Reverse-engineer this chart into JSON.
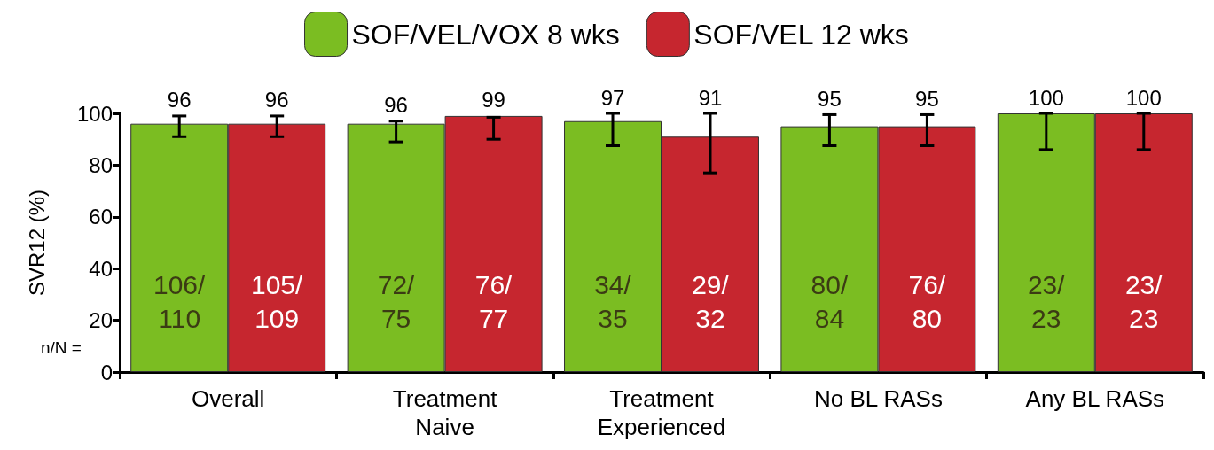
{
  "chart_data": {
    "type": "bar",
    "ylabel": "SVR12 (%)",
    "categories": [
      "Overall",
      "Treatment\nNaive",
      "Treatment\nExperienced",
      "No BL RASs",
      "Any BL RASs"
    ],
    "series": [
      {
        "name": "SOF/VEL/VOX 8 wks",
        "color": "#7bbd22",
        "values": [
          96,
          96,
          97,
          95,
          100
        ],
        "errors": [
          [
            91,
            99
          ],
          [
            89,
            97
          ],
          [
            87.5,
            100
          ],
          [
            87.5,
            99.5
          ],
          [
            86,
            100
          ]
        ]
      },
      {
        "name": "SOF/VEL 12 wks",
        "color": "#c6262f",
        "values": [
          96,
          99,
          91,
          95,
          100
        ],
        "errors": [
          [
            91,
            99
          ],
          [
            90,
            98.5
          ],
          [
            77,
            100
          ],
          [
            87.5,
            99.5
          ],
          [
            86,
            100
          ]
        ]
      }
    ],
    "ylim": [
      0,
      100
    ],
    "yticks": [
      0,
      20,
      40,
      60,
      80,
      100
    ],
    "grid": false,
    "legend": "top",
    "data_labels": true,
    "annotations": [
      "n/N =",
      "106/\n110",
      "105/\n109",
      "72/\n75",
      "76/\n77",
      "34/\n35",
      "29/\n32",
      "80/\n84",
      "76/\n80",
      "23/\n23",
      "23/\n23"
    ]
  }
}
